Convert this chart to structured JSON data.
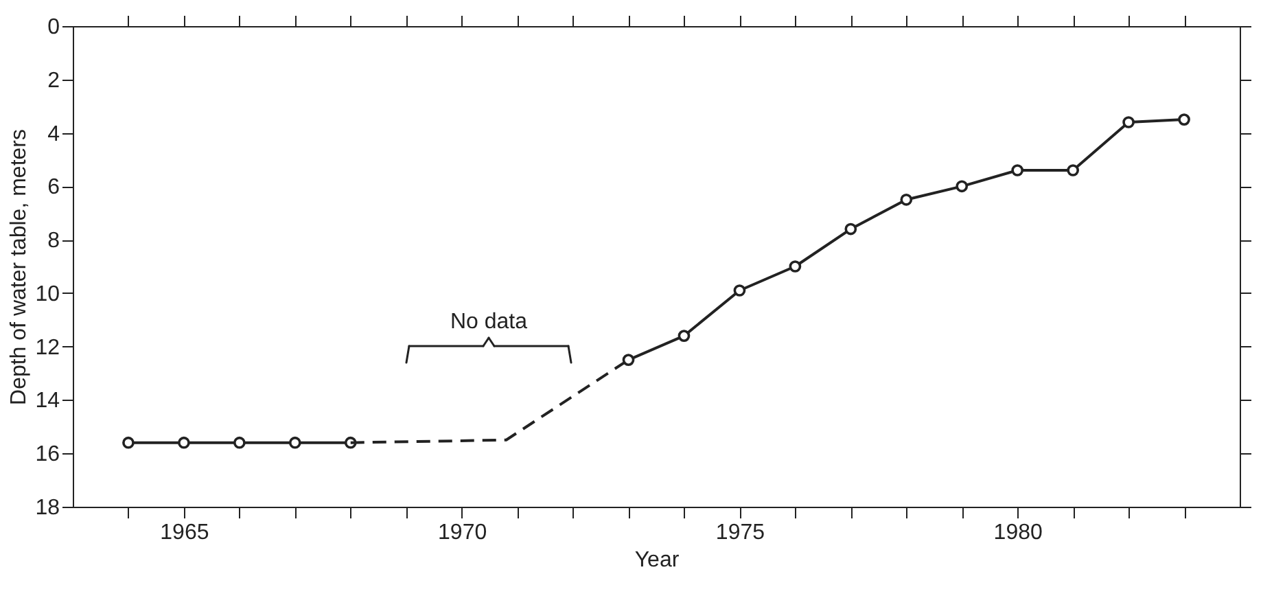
{
  "chart_data": {
    "type": "line",
    "xlabel": "Year",
    "ylabel": "Depth of water table, meters",
    "xlim": [
      1963,
      1984
    ],
    "ylim": [
      18,
      0
    ],
    "xticks": [
      {
        "value": 1964,
        "label": null
      },
      1965,
      {
        "value": 1966,
        "label": null
      },
      {
        "value": 1967,
        "label": null
      },
      {
        "value": 1968,
        "label": null
      },
      {
        "value": 1969,
        "label": null
      },
      1970,
      {
        "value": 1971,
        "label": null
      },
      {
        "value": 1972,
        "label": null
      },
      {
        "value": 1973,
        "label": null
      },
      {
        "value": 1974,
        "label": null
      },
      1975,
      {
        "value": 1976,
        "label": null
      },
      {
        "value": 1977,
        "label": null
      },
      {
        "value": 1978,
        "label": null
      },
      {
        "value": 1979,
        "label": null
      },
      1980,
      {
        "value": 1981,
        "label": null
      },
      {
        "value": 1982,
        "label": null
      },
      {
        "value": 1983,
        "label": null
      }
    ],
    "yticks": [
      0,
      2,
      4,
      6,
      8,
      10,
      12,
      14,
      16,
      18
    ],
    "grid": false,
    "series": [
      {
        "color": "#222222",
        "marker": "circle",
        "line_style": "solid",
        "x": [
          1964,
          1965,
          1966,
          1967,
          1968
        ],
        "values": [
          15.6,
          15.6,
          15.6,
          15.6,
          15.6
        ]
      },
      {
        "color": "#222222",
        "marker": "none",
        "line_style": "dashed",
        "x": [
          1968,
          1970.8,
          1973
        ],
        "values": [
          15.6,
          15.5,
          12.5
        ]
      },
      {
        "color": "#222222",
        "marker": "circle",
        "line_style": "solid",
        "x": [
          1973,
          1974,
          1975,
          1976,
          1977,
          1978,
          1979,
          1980,
          1981,
          1982,
          1983
        ],
        "values": [
          12.5,
          11.6,
          9.9,
          9.0,
          7.6,
          6.5,
          6.0,
          5.4,
          5.4,
          3.6,
          3.5
        ]
      }
    ],
    "annotations": [
      "No data"
    ]
  }
}
